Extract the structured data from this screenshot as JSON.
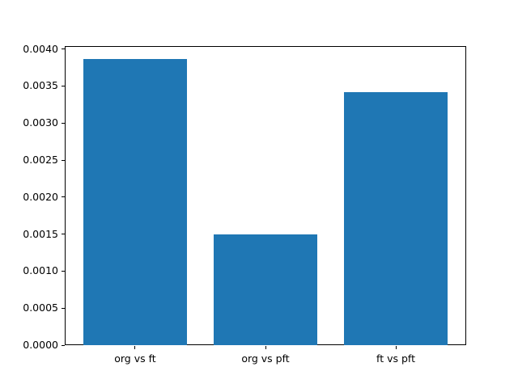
{
  "chart_data": {
    "type": "bar",
    "title": "",
    "xlabel": "",
    "ylabel": "",
    "categories": [
      "org vs ft",
      "org vs pft",
      "ft vs pft"
    ],
    "values": [
      0.00387,
      0.0015,
      0.00342
    ],
    "yticks": [
      0.0,
      0.0005,
      0.001,
      0.0015,
      0.002,
      0.0025,
      0.003,
      0.0035,
      0.004
    ],
    "ytick_decimals": 4,
    "ylim": [
      0,
      0.00404
    ],
    "xlim": [
      -0.54,
      2.54
    ],
    "bar_width_fraction": 0.8,
    "bar_color": "#1f77b4",
    "spine_color": "#000000",
    "background_color": "#ffffff",
    "grid": false,
    "legend": null
  }
}
